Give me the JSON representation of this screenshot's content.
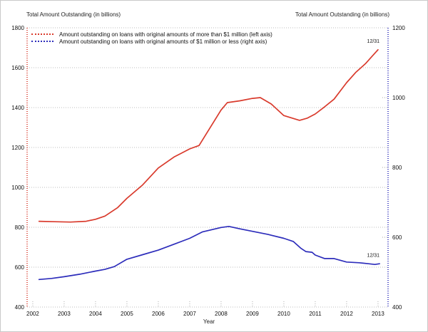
{
  "chart_data": {
    "type": "line",
    "title": "",
    "xlabel": "Year",
    "x_ticks": [
      2002,
      2003,
      2004,
      2005,
      2006,
      2007,
      2008,
      2009,
      2010,
      2011,
      2012,
      2013
    ],
    "xlim": [
      2001.82,
      2013.32
    ],
    "grid": "horizontal-dotted",
    "grid_color": "#bcbcbc",
    "tick_color": "#aaaaaa",
    "legend_position": "top-left-inside",
    "left_axis": {
      "title": "Total Amount Outstanding (in billions)",
      "range": [
        400,
        1800
      ],
      "ticks": [
        400,
        600,
        800,
        1000,
        1200,
        1400,
        1600,
        1800
      ]
    },
    "right_axis": {
      "title": "Total Amount Outstanding (in billions)",
      "range": [
        400,
        1200
      ],
      "ticks": [
        400,
        600,
        800,
        1000,
        1200
      ]
    },
    "series": [
      {
        "name": "Amount outstanding on loans with original amounts of more than $1 million (left axis)",
        "color": "#d93a2c",
        "axis": "left",
        "points": [
          [
            2002.2,
            830
          ],
          [
            2002.7,
            828
          ],
          [
            2003.2,
            826
          ],
          [
            2003.7,
            830
          ],
          [
            2004.0,
            840
          ],
          [
            2004.3,
            856
          ],
          [
            2004.7,
            898
          ],
          [
            2005.0,
            945
          ],
          [
            2005.5,
            1012
          ],
          [
            2006.0,
            1097
          ],
          [
            2006.5,
            1152
          ],
          [
            2007.0,
            1193
          ],
          [
            2007.3,
            1210
          ],
          [
            2008.0,
            1388
          ],
          [
            2008.2,
            1425
          ],
          [
            2008.6,
            1434
          ],
          [
            2009.0,
            1446
          ],
          [
            2009.25,
            1450
          ],
          [
            2009.6,
            1418
          ],
          [
            2010.0,
            1360
          ],
          [
            2010.5,
            1336
          ],
          [
            2010.75,
            1347
          ],
          [
            2011.0,
            1368
          ],
          [
            2011.3,
            1404
          ],
          [
            2011.6,
            1442
          ],
          [
            2012.0,
            1525
          ],
          [
            2012.3,
            1578
          ],
          [
            2012.6,
            1620
          ],
          [
            2012.8,
            1655
          ],
          [
            2013.0,
            1690
          ]
        ]
      },
      {
        "name": "Amount outstanding on loans with original amounts of $1 million or less (right axis)",
        "color": "#2d2dbb",
        "axis": "right",
        "points": [
          [
            2002.2,
            479
          ],
          [
            2002.6,
            482
          ],
          [
            2003.0,
            487
          ],
          [
            2003.5,
            494
          ],
          [
            2004.0,
            503
          ],
          [
            2004.3,
            508
          ],
          [
            2004.6,
            516
          ],
          [
            2005.0,
            537
          ],
          [
            2005.5,
            550
          ],
          [
            2006.0,
            563
          ],
          [
            2006.5,
            580
          ],
          [
            2007.0,
            597
          ],
          [
            2007.4,
            615
          ],
          [
            2008.0,
            628
          ],
          [
            2008.25,
            631
          ],
          [
            2008.6,
            624
          ],
          [
            2009.0,
            617
          ],
          [
            2009.5,
            608
          ],
          [
            2010.0,
            597
          ],
          [
            2010.3,
            588
          ],
          [
            2010.55,
            568
          ],
          [
            2010.7,
            559
          ],
          [
            2010.9,
            557
          ],
          [
            2011.0,
            549
          ],
          [
            2011.3,
            539
          ],
          [
            2011.6,
            539
          ],
          [
            2012.0,
            529
          ],
          [
            2012.4,
            527
          ],
          [
            2012.7,
            524
          ],
          [
            2012.9,
            522
          ],
          [
            2013.05,
            524
          ]
        ]
      }
    ],
    "annotations": [
      {
        "text": "12/31",
        "axis": "left",
        "x": 2012.85,
        "y": 1732
      },
      {
        "text": "12/31",
        "axis": "right",
        "x": 2012.85,
        "y": 548
      }
    ]
  }
}
